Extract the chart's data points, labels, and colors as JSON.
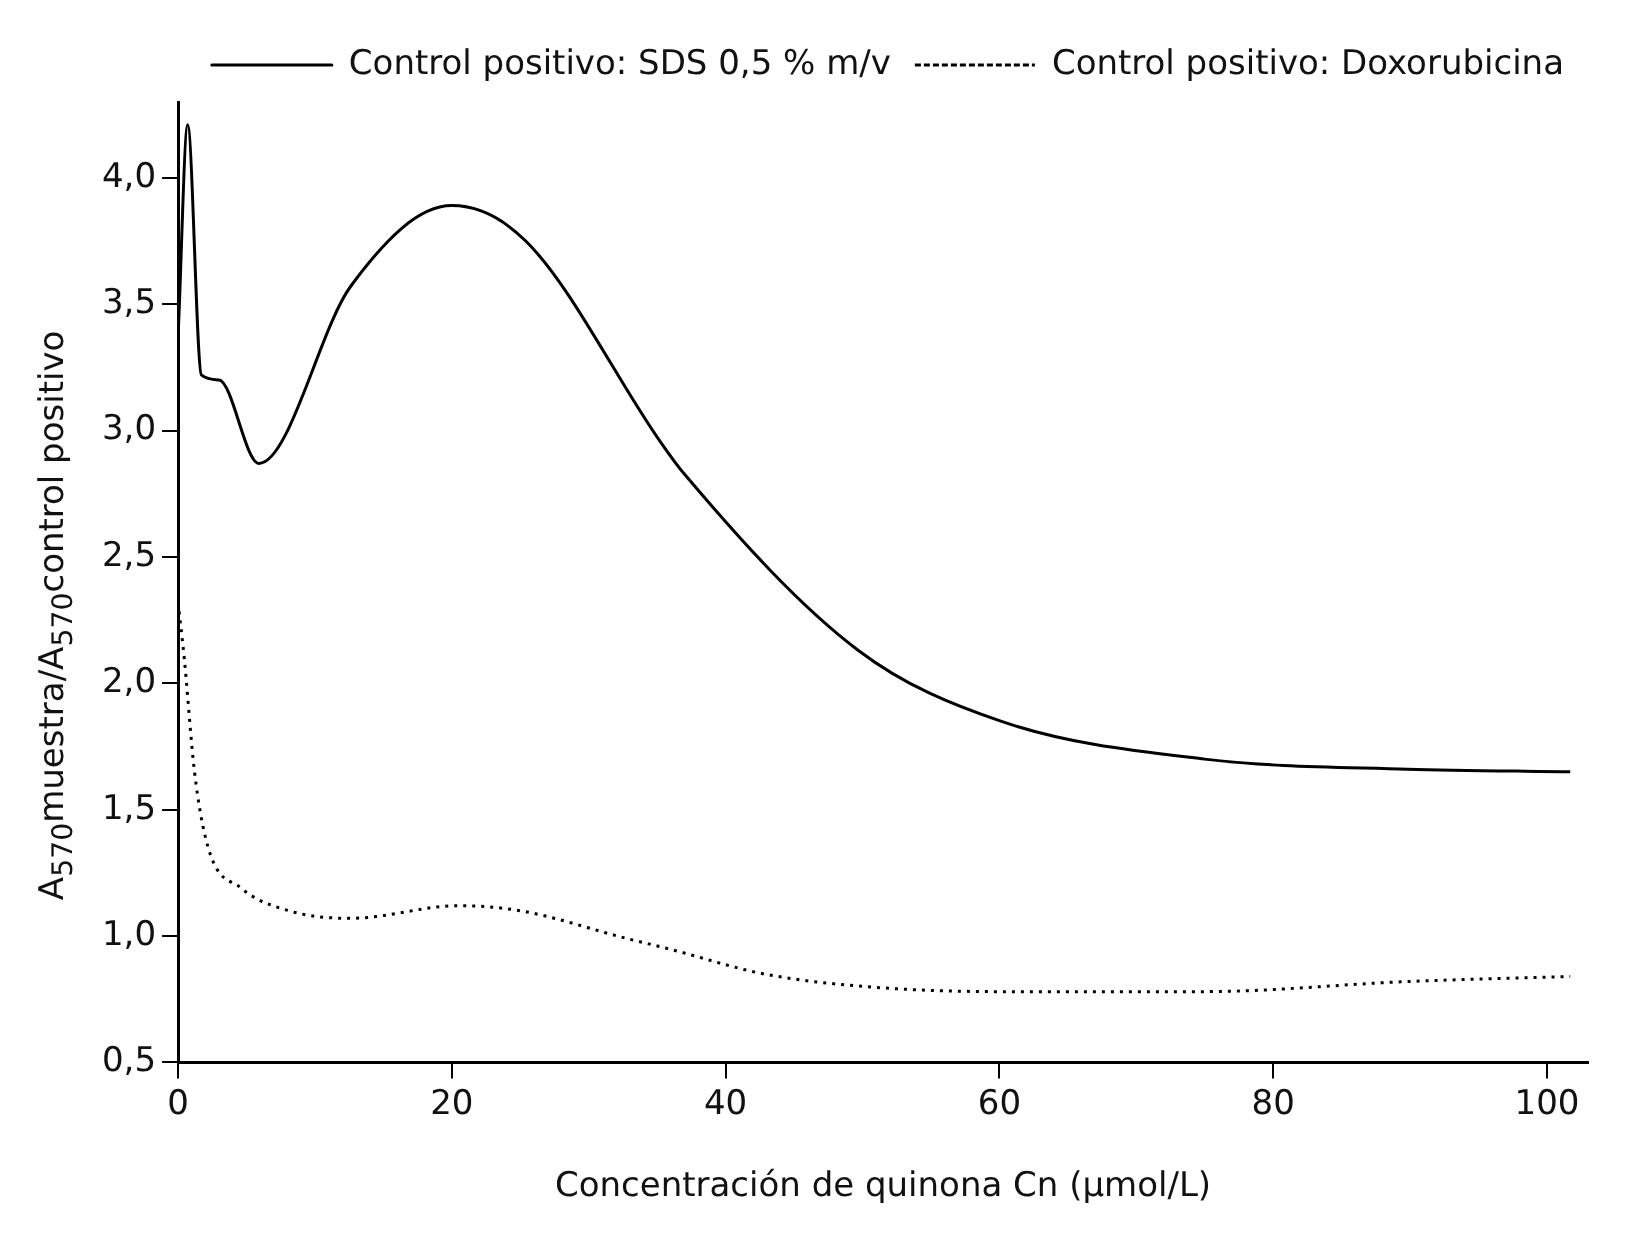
{
  "chart_data": {
    "type": "line",
    "xlabel": "Concentración de quinona Cn (μmol/L)",
    "ylabel": "A$_{570}$muestra/A$_{570}$control positivo",
    "xlim": [
      0,
      103
    ],
    "xticks": [
      0,
      20,
      40,
      60,
      80,
      100
    ],
    "ylim": [
      0.5,
      4.3
    ],
    "yticks": [
      {
        "value": 0.5,
        "label": "0,5"
      },
      {
        "value": 1,
        "label": "1,0"
      },
      {
        "value": 1.5,
        "label": "1,5"
      },
      {
        "value": 2,
        "label": "2,0"
      },
      {
        "value": 2.5,
        "label": "2,5"
      },
      {
        "value": 3,
        "label": "3,0"
      },
      {
        "value": 3.5,
        "label": "3,5"
      },
      {
        "value": 4,
        "label": "4,0"
      }
    ],
    "grid": false,
    "legend": "top right",
    "marker": "none",
    "series": [
      {
        "name": "Control positivo: SDS 0,5 % m/v",
        "color": "#000000",
        "line_style": "solid",
        "x": [
          0,
          0.7,
          1.7,
          3.0,
          5.9,
          12.6,
          20,
          25.4,
          35.3,
          36.8,
          49.7,
          60.1,
          75,
          89.8,
          101.7
        ],
        "values": [
          3.37,
          4.21,
          3.22,
          3.2,
          2.87,
          3.57,
          3.89,
          3.75,
          2.95,
          2.84,
          2.13,
          1.85,
          1.7,
          1.66,
          1.65
        ]
      },
      {
        "name": "Control positivo: Doxorubicina",
        "color": "#000000",
        "line_style": "dotted",
        "x": [
          0,
          0.45,
          1.2,
          2.2,
          4.6,
          8.1,
          12.6,
          20.5,
          25,
          32.8,
          35.8,
          42.8,
          50.2,
          60,
          75,
          89.8,
          101.7
        ],
        "values": [
          2.32,
          2.1,
          1.65,
          1.35,
          1.19,
          1.1,
          1.07,
          1.12,
          1.1,
          0.99,
          0.95,
          0.85,
          0.8,
          0.78,
          0.78,
          0.82,
          0.84
        ]
      }
    ]
  }
}
